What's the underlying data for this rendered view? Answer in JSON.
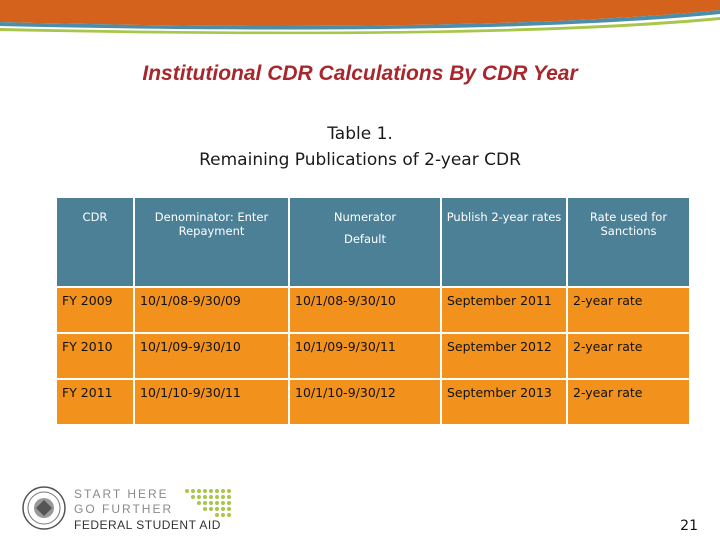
{
  "slide": {
    "title": "Institutional CDR Calculations By CDR Year",
    "table_caption_line1": "Table 1.",
    "table_caption_line2": "Remaining Publications of 2-year CDR",
    "page_number": "21"
  },
  "table": {
    "headers": {
      "cdr": "CDR",
      "denominator": "Denominator: Enter Repayment",
      "numerator": "Numerator",
      "numerator_sub": "Default",
      "publish": "Publish 2-year rates",
      "rate": "Rate used for Sanctions"
    },
    "rows": [
      {
        "cdr": "FY 2009",
        "denominator": "10/1/08-9/30/09",
        "numerator": "10/1/08-9/30/10",
        "publish": "September 2011",
        "rate": "2-year rate"
      },
      {
        "cdr": "FY 2010",
        "denominator": "10/1/09-9/30/10",
        "numerator": "10/1/09-9/30/11",
        "publish": "September 2012",
        "rate": "2-year rate"
      },
      {
        "cdr": "FY 2011",
        "denominator": "10/1/10-9/30/11",
        "numerator": "10/1/10-9/30/12",
        "publish": "September 2013",
        "rate": "2-year rate"
      }
    ]
  },
  "logo": {
    "line1": "START HERE",
    "line2": "GO FURTHER",
    "line3": "FEDERAL STUDENT AID"
  },
  "colors": {
    "title": "#a8272c",
    "header_fill": "#4c8097",
    "row_fill": "#f2921c",
    "top_bar": "#d5621c"
  }
}
